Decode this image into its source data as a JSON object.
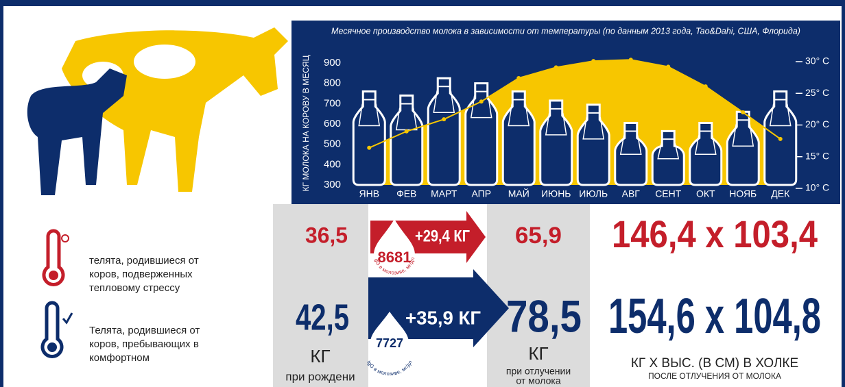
{
  "chart_data": {
    "type": "bar",
    "title": "Месячное производство молока в зависимости от температуры (по данным 2013 года, Tao&Dahi, США, Флорида)",
    "y_label": "КГ МОЛОКА НА КОРОВУ В МЕСЯЦ",
    "categories": [
      "ЯНВ",
      "ФЕВ",
      "МАРТ",
      "АПР",
      "МАЙ",
      "ИЮНЬ",
      "ИЮЛЬ",
      "АВГ",
      "СЕНТ",
      "ОКТ",
      "НОЯБ",
      "ДЕК"
    ],
    "series": [
      {
        "color": "#0d2d6b",
        "values": [
          760,
          740,
          825,
          800,
          760,
          715,
          695,
          605,
          565,
          605,
          660,
          760
        ]
      },
      {
        "color": "#f7c600",
        "axis": "y2",
        "type": "line",
        "values": [
          16.4,
          19.0,
          20.9,
          23.7,
          27.4,
          29.1,
          30.1,
          30.3,
          29.2,
          26.1,
          22.0,
          17.8
        ]
      }
    ],
    "ylim": [
      300,
      900
    ],
    "yticks": [
      300,
      400,
      500,
      600,
      700,
      800,
      900
    ],
    "y2lim": [
      10,
      30
    ],
    "y2ticks": [
      {
        "value": 10,
        "label": "10° C"
      },
      {
        "value": 15,
        "label": "15° C"
      },
      {
        "value": 20,
        "label": "20° C"
      },
      {
        "value": 25,
        "label": "25° C"
      },
      {
        "value": 30,
        "label": "30° C"
      }
    ]
  },
  "legend": [
    {
      "lines": [
        "телята, родившиеся от",
        "коров, подверженных",
        "тепловому стрессу"
      ]
    },
    {
      "lines": [
        "Телята, родившиеся от",
        "коров, пребывающих в",
        "комфортном"
      ]
    }
  ],
  "rows": [
    {
      "birth": "36,5",
      "gain": "+29,4 КГ",
      "igg": "8681",
      "weaning": "65,9",
      "size": "146,4 x 103,4"
    },
    {
      "birth": "42,5",
      "gain": "+35,9 КГ",
      "igg": "7727",
      "weaning": "78,5",
      "size": "154,6 x 104,8"
    }
  ],
  "igg_label": "IgG в молозиве, мг/дл",
  "footer": {
    "birth_unit": "КГ",
    "birth_note": "при рождени",
    "weaning_unit": "КГ",
    "weaning_note": [
      "при отлучении",
      "от молока"
    ],
    "size_unit": "КГ Х ВЫС. (В СМ) В ХОЛКЕ",
    "size_note": "ПОСЛЕ ОТЛУЧЕНИЯ ОТ МОЛОКА"
  }
}
